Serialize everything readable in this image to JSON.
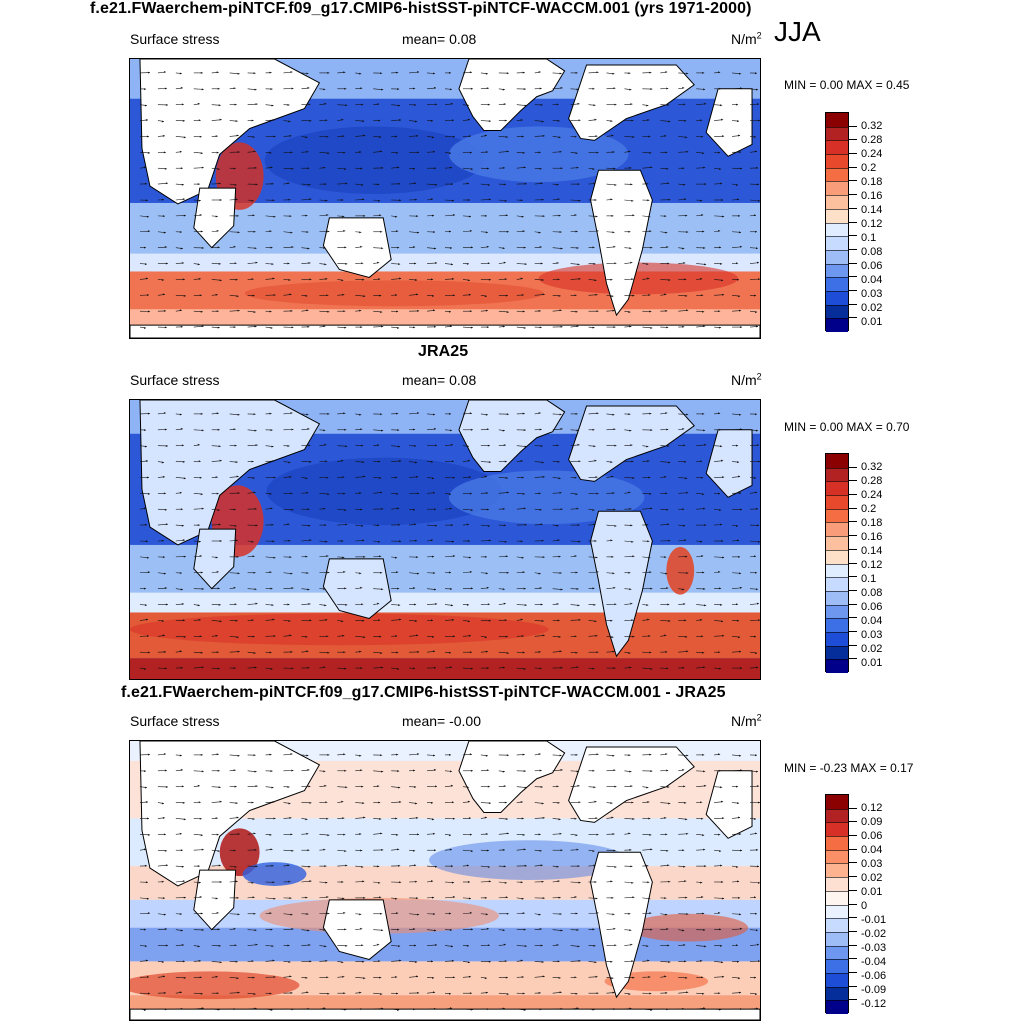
{
  "season": "JJA",
  "panels": [
    {
      "title": "f.e21.FWaerchem-piNTCF.f09_g17.CMIP6-histSST-piNTCF-WACCM.001 (yrs 1971-2000)",
      "variable": "Surface stress",
      "mean_label": "mean=",
      "mean_value": "0.08",
      "unit_base": "N/m",
      "unit_exp": "2",
      "min_label": "MIN =",
      "min_value": "0.00",
      "max_label": "MAX =",
      "max_value": "0.45",
      "colorbar_levels": [
        "0.32",
        "0.28",
        "0.24",
        "0.2",
        "0.18",
        "0.16",
        "0.14",
        "0.12",
        "0.1",
        "0.08",
        "0.06",
        "0.04",
        "0.03",
        "0.02",
        "0.01"
      ],
      "colorbar_colors": [
        "#8B0000",
        "#B22222",
        "#D73027",
        "#E8492C",
        "#F46D43",
        "#F99C7A",
        "#FDC09E",
        "#FEE0C8",
        "#E0ECFF",
        "#C6DBFF",
        "#9EBCF5",
        "#6E97EF",
        "#3D6FE6",
        "#1E4ED8",
        "#062E9B",
        "#00008B"
      ]
    },
    {
      "title": "JRA25",
      "variable": "Surface stress",
      "mean_label": "mean=",
      "mean_value": "0.08",
      "unit_base": "N/m",
      "unit_exp": "2",
      "min_label": "MIN =",
      "min_value": "0.00",
      "max_label": "MAX =",
      "max_value": "0.70",
      "colorbar_levels": [
        "0.32",
        "0.28",
        "0.24",
        "0.2",
        "0.18",
        "0.16",
        "0.14",
        "0.12",
        "0.1",
        "0.08",
        "0.06",
        "0.04",
        "0.03",
        "0.02",
        "0.01"
      ],
      "colorbar_colors": [
        "#8B0000",
        "#B22222",
        "#D73027",
        "#E8492C",
        "#F46D43",
        "#F99C7A",
        "#FDC09E",
        "#FEE0C8",
        "#E0ECFF",
        "#C6DBFF",
        "#9EBCF5",
        "#6E97EF",
        "#3D6FE6",
        "#1E4ED8",
        "#062E9B",
        "#00008B"
      ]
    },
    {
      "title": "f.e21.FWaerchem-piNTCF.f09_g17.CMIP6-histSST-piNTCF-WACCM.001 - JRA25",
      "variable": "Surface stress",
      "mean_label": "mean=",
      "mean_value": "-0.00",
      "unit_base": "N/m",
      "unit_exp": "2",
      "min_label": "MIN =",
      "min_value": "-0.23",
      "max_label": "MAX =",
      "max_value": "0.17",
      "colorbar_levels": [
        "0.12",
        "0.09",
        "0.06",
        "0.04",
        "0.03",
        "0.02",
        "0.01",
        "0",
        "-0.01",
        "-0.02",
        "-0.03",
        "-0.04",
        "-0.06",
        "-0.09",
        "-0.12"
      ],
      "colorbar_colors": [
        "#8B0000",
        "#B22222",
        "#D73027",
        "#F46D43",
        "#FA8F68",
        "#FDB38F",
        "#FEE0D2",
        "#FFF5F0",
        "#EAF2FF",
        "#C6DBFF",
        "#9EBCF5",
        "#6E97EF",
        "#3D6FE6",
        "#1E4ED8",
        "#062E9B",
        "#00008B"
      ]
    }
  ],
  "chart_data": [
    {
      "type": "heatmap",
      "title": "f.e21.FWaerchem-piNTCF.f09_g17.CMIP6-histSST-piNTCF-WACCM.001 (yrs 1971-2000)",
      "variable": "Surface stress",
      "unit": "N/m2",
      "mean": 0.08,
      "min": 0.0,
      "max": 0.45,
      "levels": [
        0.01,
        0.02,
        0.03,
        0.04,
        0.06,
        0.08,
        0.1,
        0.12,
        0.14,
        0.16,
        0.18,
        0.2,
        0.24,
        0.28,
        0.32
      ]
    },
    {
      "type": "heatmap",
      "title": "JRA25",
      "variable": "Surface stress",
      "unit": "N/m2",
      "mean": 0.08,
      "min": 0.0,
      "max": 0.7,
      "levels": [
        0.01,
        0.02,
        0.03,
        0.04,
        0.06,
        0.08,
        0.1,
        0.12,
        0.14,
        0.16,
        0.18,
        0.2,
        0.24,
        0.28,
        0.32
      ]
    },
    {
      "type": "heatmap",
      "title": "f.e21.FWaerchem-piNTCF.f09_g17.CMIP6-histSST-piNTCF-WACCM.001 - JRA25",
      "variable": "Surface stress",
      "unit": "N/m2",
      "mean": -0.0,
      "min": -0.23,
      "max": 0.17,
      "levels": [
        -0.12,
        -0.09,
        -0.06,
        -0.04,
        -0.03,
        -0.02,
        -0.01,
        0,
        0.01,
        0.02,
        0.03,
        0.04,
        0.06,
        0.09,
        0.12
      ]
    }
  ]
}
